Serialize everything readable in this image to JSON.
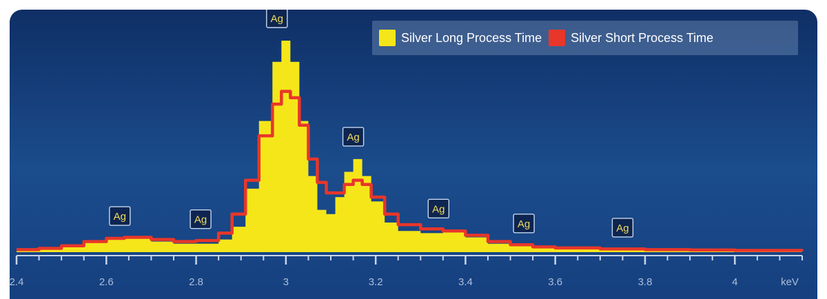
{
  "chart_data": {
    "type": "area",
    "xlabel": "keV",
    "xlim": [
      2.4,
      4.15
    ],
    "ylim": [
      0,
      1
    ],
    "xticks": [
      2.4,
      2.6,
      2.8,
      3,
      3.2,
      3.4,
      3.6,
      3.8,
      4
    ],
    "xtick_labels": [
      "2.4",
      "2.6",
      "2.8",
      "3",
      "3.2",
      "3.4",
      "3.6",
      "3.8",
      "4"
    ],
    "minor_tick_step": 0.05,
    "grid": false,
    "legend": "top-right",
    "x": [
      2.4,
      2.45,
      2.5,
      2.55,
      2.6,
      2.64,
      2.7,
      2.75,
      2.8,
      2.85,
      2.88,
      2.91,
      2.94,
      2.97,
      2.99,
      3.01,
      3.03,
      3.05,
      3.07,
      3.09,
      3.11,
      3.13,
      3.15,
      3.17,
      3.19,
      3.22,
      3.25,
      3.3,
      3.35,
      3.4,
      3.45,
      3.5,
      3.55,
      3.6,
      3.7,
      3.8,
      3.9,
      4.0,
      4.15
    ],
    "series": [
      {
        "name": "Silver Long Process Time",
        "color": "#f5e61a",
        "values": [
          0.01,
          0.015,
          0.025,
          0.045,
          0.06,
          0.065,
          0.05,
          0.04,
          0.04,
          0.06,
          0.12,
          0.3,
          0.62,
          0.9,
          1.0,
          0.9,
          0.62,
          0.36,
          0.2,
          0.18,
          0.26,
          0.38,
          0.44,
          0.36,
          0.24,
          0.14,
          0.1,
          0.09,
          0.1,
          0.07,
          0.04,
          0.03,
          0.02,
          0.015,
          0.01,
          0.01,
          0.008,
          0.006,
          0.005
        ]
      },
      {
        "name": "Silver Short Process Time",
        "color": "#e8362a",
        "values": [
          0.012,
          0.018,
          0.03,
          0.05,
          0.065,
          0.07,
          0.06,
          0.05,
          0.055,
          0.09,
          0.18,
          0.34,
          0.55,
          0.7,
          0.76,
          0.73,
          0.6,
          0.44,
          0.33,
          0.28,
          0.28,
          0.32,
          0.34,
          0.32,
          0.26,
          0.18,
          0.13,
          0.11,
          0.1,
          0.08,
          0.05,
          0.035,
          0.025,
          0.02,
          0.015,
          0.012,
          0.01,
          0.008,
          0.006
        ]
      }
    ],
    "annotations": [
      {
        "text": "Ag",
        "x": 2.63,
        "y": 0.065
      },
      {
        "text": "Ag",
        "x": 2.81,
        "y": 0.05
      },
      {
        "text": "Ag",
        "x": 2.98,
        "y": 1.0
      },
      {
        "text": "Ag",
        "x": 3.15,
        "y": 0.44
      },
      {
        "text": "Ag",
        "x": 3.34,
        "y": 0.1
      },
      {
        "text": "Ag",
        "x": 3.53,
        "y": 0.03
      },
      {
        "text": "Ag",
        "x": 3.75,
        "y": 0.01
      }
    ]
  },
  "colors": {
    "background": "#163f7e",
    "long_series": "#f5e61a",
    "short_series": "#e8362a",
    "axis": "#c9d6ea"
  }
}
